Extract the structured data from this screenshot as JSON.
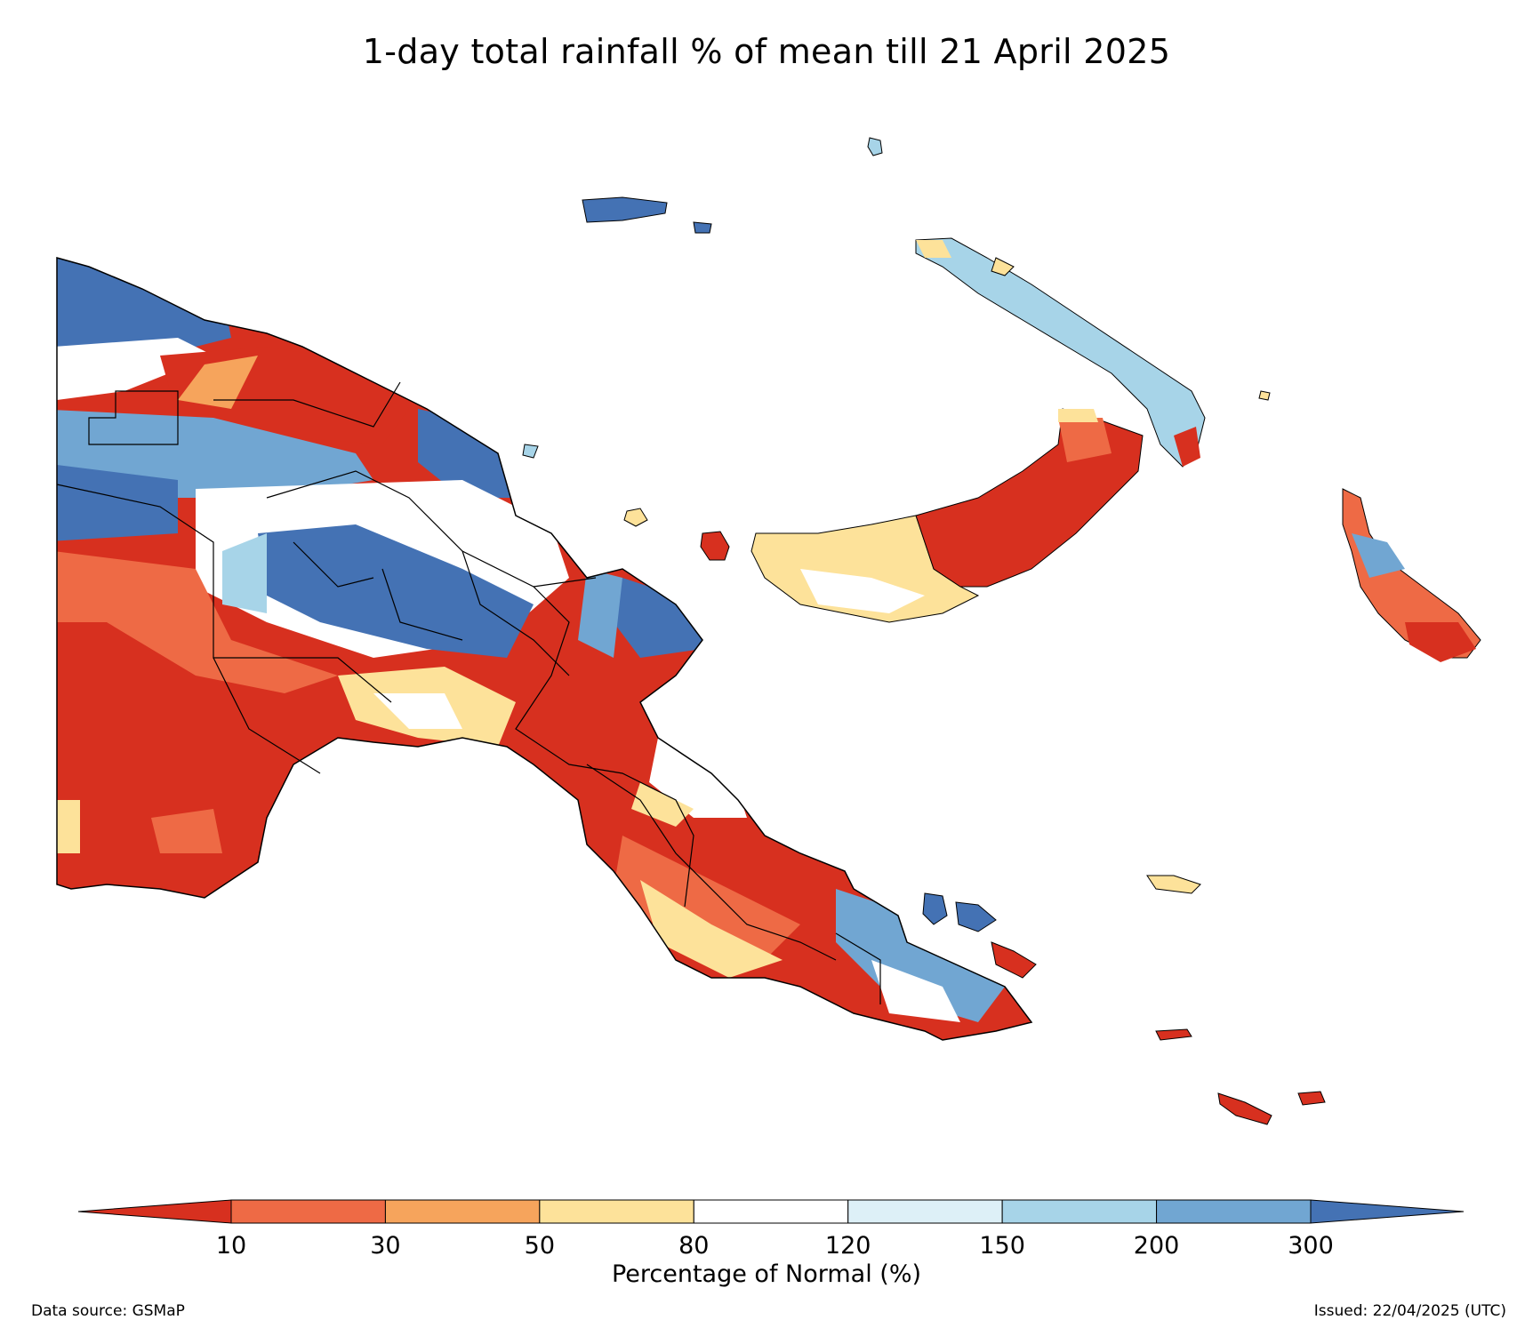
{
  "title": "1-day total rainfall % of mean till 21 April 2025",
  "legend": {
    "label": "Percentage of Normal (%)",
    "ticks": [
      "10",
      "30",
      "50",
      "80",
      "120",
      "150",
      "200",
      "300"
    ],
    "bins": [
      {
        "range": "<10",
        "color": "#d7301f"
      },
      {
        "range": "10-30",
        "color": "#ee6a45"
      },
      {
        "range": "30-50",
        "color": "#f6a45c"
      },
      {
        "range": "50-80",
        "color": "#fde29a"
      },
      {
        "range": "80-120",
        "color": "#ffffff"
      },
      {
        "range": "120-150",
        "color": "#ddf0f7"
      },
      {
        "range": "150-200",
        "color": "#a7d4e8"
      },
      {
        "range": "200-300",
        "color": "#71a6d2"
      },
      {
        "range": ">300",
        "color": "#4472b4"
      }
    ]
  },
  "footer": {
    "data_source": "Data source: GSMaP",
    "issued": "Issued: 22/04/2025 (UTC)"
  },
  "regions": [
    {
      "name": "far-northwest",
      "bin": ">300"
    },
    {
      "name": "sepik-coast",
      "bin": "<10"
    },
    {
      "name": "highlands-central",
      "bin": ">300"
    },
    {
      "name": "western-province",
      "bin": "<10"
    },
    {
      "name": "madang",
      "bin": ">300"
    },
    {
      "name": "morobe-gulf",
      "bin": "<10"
    },
    {
      "name": "papuan-peninsula",
      "bin": "<10"
    },
    {
      "name": "new-britain-west",
      "bin": "50-80"
    },
    {
      "name": "new-britain-east",
      "bin": "<10"
    },
    {
      "name": "new-ireland",
      "bin": "150-200"
    },
    {
      "name": "bougainville",
      "bin": "10-30"
    },
    {
      "name": "manus",
      "bin": ">300"
    },
    {
      "name": "milne-bay-islands",
      "bin": "200-300"
    },
    {
      "name": "louisiade-islands",
      "bin": "<10"
    }
  ]
}
